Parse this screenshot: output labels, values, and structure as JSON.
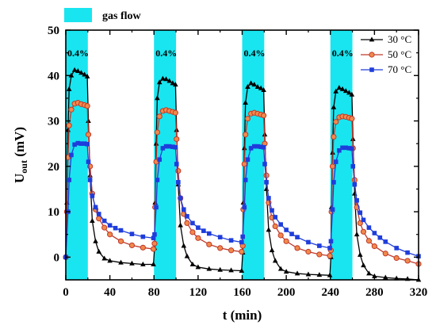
{
  "chart_data": {
    "type": "line",
    "xlabel": "t (min)",
    "ylabel": {
      "main": "U",
      "sub": "out",
      "unit": " (mV)"
    },
    "xlim": [
      0,
      320
    ],
    "ylim": [
      -5,
      50
    ],
    "xticks": [
      0,
      40,
      80,
      120,
      160,
      200,
      240,
      280,
      320
    ],
    "yticks": [
      0,
      10,
      20,
      30,
      40,
      50
    ],
    "grid": false,
    "legend_position": "top-right",
    "band_legend": {
      "label": "gas flow",
      "color": "#19e5f0"
    },
    "bands": [
      {
        "start": 0,
        "end": 20,
        "label": "0.4%"
      },
      {
        "start": 80,
        "end": 100,
        "label": "0.4%"
      },
      {
        "start": 160,
        "end": 180,
        "label": "0.4%"
      },
      {
        "start": 240,
        "end": 260,
        "label": "0.4%"
      }
    ],
    "series": [
      {
        "name": "30 °C",
        "color": "#000000",
        "marker": "triangle",
        "x": [
          0,
          1,
          2,
          3,
          5,
          8,
          11,
          14,
          17,
          19.5,
          20.5,
          22,
          24,
          27,
          30,
          35,
          40,
          50,
          60,
          70,
          79.5,
          80.5,
          81,
          82,
          83,
          85,
          88,
          91,
          94,
          97,
          99.5,
          100.5,
          102,
          104,
          107,
          110,
          115,
          120,
          130,
          140,
          150,
          159.5,
          160.5,
          161,
          162,
          163,
          165,
          168,
          171,
          174,
          177,
          179.5,
          180.5,
          182,
          184,
          187,
          190,
          195,
          200,
          210,
          220,
          230,
          239.5,
          240.5,
          241,
          242,
          243,
          245,
          248,
          251,
          254,
          257,
          259.5,
          260.5,
          262,
          264,
          267,
          270,
          275,
          280,
          290,
          300,
          310,
          320
        ],
        "y": [
          0,
          12,
          28,
          37,
          40,
          41.2,
          41,
          40.6,
          40.2,
          39.8,
          30,
          18,
          8,
          3.5,
          1.2,
          -0.3,
          -0.8,
          -1.2,
          -1.4,
          -1.6,
          -1.6,
          2,
          12,
          25,
          35,
          38.5,
          39.3,
          39.2,
          38.8,
          38.3,
          38,
          28,
          16,
          7,
          2.5,
          0.2,
          -1.6,
          -2.2,
          -2.6,
          -2.8,
          -2.9,
          -3,
          1,
          12,
          24,
          34,
          37.5,
          38.3,
          38,
          37.5,
          37.2,
          36.8,
          27,
          15,
          6,
          1.5,
          -0.8,
          -2.6,
          -3.2,
          -3.6,
          -3.8,
          -3.9,
          -4,
          0,
          11,
          23,
          33,
          36.5,
          37.3,
          37,
          36.6,
          36.2,
          35.8,
          26,
          14,
          5,
          0.5,
          -1.8,
          -3.6,
          -4.2,
          -4.5,
          -4.7,
          -4.8,
          -5
        ]
      },
      {
        "name": "50 °C",
        "color": "#c0392b",
        "fill": "#f08a4b",
        "marker": "circle",
        "x": [
          0,
          1,
          2,
          3,
          5,
          8,
          11,
          14,
          17,
          19.5,
          20.5,
          22,
          24,
          27,
          30,
          35,
          40,
          50,
          60,
          70,
          79.5,
          80.5,
          81,
          82,
          83,
          85,
          88,
          91,
          94,
          97,
          99.5,
          100.5,
          102,
          104,
          107,
          110,
          115,
          120,
          130,
          140,
          150,
          159.5,
          160.5,
          161,
          162,
          163,
          165,
          168,
          171,
          174,
          177,
          179.5,
          180.5,
          182,
          184,
          187,
          190,
          195,
          200,
          210,
          220,
          230,
          239.5,
          240.5,
          241,
          242,
          243,
          245,
          248,
          251,
          254,
          257,
          259.5,
          260.5,
          262,
          264,
          267,
          270,
          275,
          280,
          290,
          300,
          310,
          320
        ],
        "y": [
          0,
          10,
          22,
          29,
          32.5,
          33.8,
          34,
          33.7,
          33.5,
          33.3,
          27,
          20,
          14,
          10.5,
          8.5,
          6.5,
          5,
          3.5,
          2.6,
          2.1,
          1.8,
          3,
          11,
          21,
          27.5,
          31,
          32.2,
          32.4,
          32.2,
          32,
          31.8,
          26,
          19,
          13,
          9.5,
          7.5,
          5.5,
          4.2,
          2.8,
          2,
          1.5,
          1.2,
          2.5,
          10.5,
          20.5,
          27,
          30.5,
          31.6,
          31.8,
          31.6,
          31.4,
          31.2,
          25,
          18,
          12,
          8.7,
          6.8,
          4.8,
          3.5,
          2,
          1.2,
          0.6,
          0.3,
          1.5,
          10,
          20,
          26.5,
          29.8,
          30.8,
          31,
          30.9,
          30.7,
          30.5,
          24,
          17,
          11,
          7.5,
          5.6,
          3.6,
          2.4,
          0.8,
          -0.2,
          -0.8,
          -1.5
        ]
      },
      {
        "name": "70 °C",
        "color": "#1f3ddb",
        "marker": "square",
        "x": [
          0,
          2,
          3,
          5,
          8,
          11,
          14,
          17,
          19.5,
          20.5,
          22,
          24,
          27,
          30,
          35,
          40,
          45,
          50,
          60,
          70,
          79.5,
          80.5,
          82,
          83,
          85,
          88,
          91,
          94,
          97,
          99.5,
          100.5,
          102,
          104,
          107,
          110,
          115,
          120,
          125,
          130,
          140,
          150,
          159.5,
          160.5,
          162,
          163,
          165,
          168,
          171,
          174,
          177,
          179.5,
          180.5,
          182,
          184,
          187,
          190,
          195,
          200,
          205,
          210,
          220,
          230,
          239.5,
          240.5,
          242,
          243,
          245,
          248,
          251,
          254,
          257,
          259.5,
          260.5,
          262,
          264,
          267,
          270,
          275,
          280,
          285,
          290,
          300,
          310,
          320
        ],
        "y": [
          0,
          10,
          17,
          22.5,
          24.8,
          25.1,
          25,
          25,
          24.9,
          21,
          17,
          13.5,
          11,
          9.5,
          8,
          7,
          6.4,
          5.9,
          5.1,
          4.5,
          4.2,
          5,
          11,
          17,
          21.5,
          24,
          24.4,
          24.4,
          24.3,
          24.2,
          20.5,
          16.5,
          13,
          10.5,
          9,
          7.5,
          6.5,
          5.8,
          5.2,
          4.4,
          3.7,
          3.3,
          4.5,
          11,
          17,
          21.5,
          24,
          24.4,
          24.4,
          24.3,
          24.2,
          20.5,
          16.5,
          13,
          10.3,
          8.8,
          7.2,
          6,
          5.1,
          4.4,
          3.3,
          2.5,
          2,
          3.5,
          10.5,
          16.5,
          21,
          23.5,
          24.1,
          24.1,
          24,
          23.9,
          20,
          16,
          12.5,
          9.8,
          8.2,
          6.5,
          5.3,
          4.3,
          3.4,
          2,
          1,
          0.2
        ]
      }
    ]
  }
}
